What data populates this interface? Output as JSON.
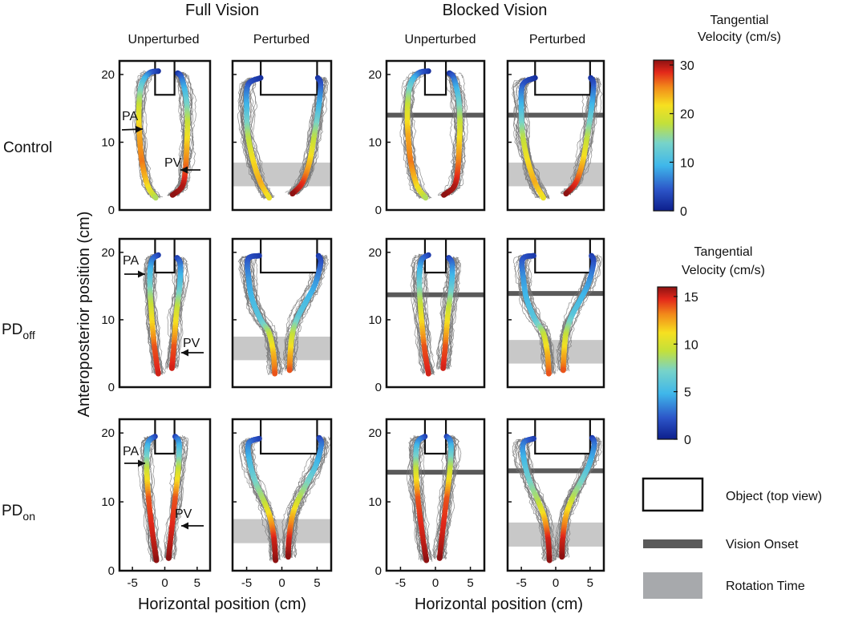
{
  "chart_data": {
    "type": "line",
    "description_units": "cm",
    "column_groups": [
      {
        "title": "Full Vision",
        "columns": [
          "Unperturbed",
          "Perturbed"
        ]
      },
      {
        "title": "Blocked Vision",
        "columns": [
          "Unperturbed",
          "Perturbed"
        ]
      }
    ],
    "rows": [
      {
        "label": "Control",
        "sub": ""
      },
      {
        "label": "PD",
        "sub": "off"
      },
      {
        "label": "PD",
        "sub": "on"
      }
    ],
    "xlabel": "Horizontal position (cm)",
    "ylabel": "Anteroposterior position (cm)",
    "xlim": [
      -7,
      7
    ],
    "ylim": [
      0,
      22
    ],
    "x_ticks": [
      -5,
      0,
      5
    ],
    "x_tick_labels": [
      "-5",
      "0",
      "5"
    ],
    "y_ticks": [
      0,
      10,
      20
    ],
    "y_tick_labels": [
      "0",
      "10",
      "20"
    ],
    "annotations": {
      "peak_acceleration": "PA",
      "peak_velocity": "PV"
    },
    "object_unperturbed": {
      "x": [
        -1.5,
        1.5
      ],
      "y": [
        17,
        22
      ]
    },
    "object_perturbed": {
      "x": [
        -3,
        5
      ],
      "y": [
        17,
        22
      ]
    },
    "vision_onset_y": [
      null,
      null,
      14,
      14,
      13.7,
      13.9,
      14.3,
      14.5
    ],
    "rotation_time_y": [
      [
        3.5,
        7
      ],
      [
        3.5,
        7
      ],
      [
        4,
        7.5
      ],
      [
        3.5,
        7
      ],
      [
        4,
        7.5
      ],
      [
        3.5,
        7
      ]
    ],
    "colorbars": [
      {
        "title_lines": [
          "Tangential",
          "Velocity (cm/s)"
        ],
        "min": 0,
        "max": 31,
        "ticks": [
          0,
          10,
          20,
          30
        ],
        "tick_labels": [
          "0",
          "10",
          "20",
          "30"
        ],
        "applies_to": "Control"
      },
      {
        "title_lines": [
          "Tangential",
          "Velocity (cm/s)"
        ],
        "min": 0,
        "max": 16,
        "ticks": [
          0,
          5,
          10,
          15
        ],
        "tick_labels": [
          "0",
          "5",
          "10",
          "15"
        ],
        "applies_to": "PD"
      }
    ],
    "mean_trajectories": {
      "control_unperturbed": {
        "left_digit": {
          "x": [
            -1,
            -2.4,
            -3.6,
            -4.0,
            -3.9,
            -3.5,
            -2.6,
            -1.4
          ],
          "y": [
            20.5,
            20.2,
            18.5,
            15,
            11,
            7,
            3.5,
            1.8
          ],
          "speed": [
            1,
            5,
            12,
            19,
            24,
            26,
            22,
            17
          ]
        },
        "right_digit": {
          "x": [
            2,
            2.6,
            3.3,
            3.5,
            3.4,
            3.2,
            2.7,
            1.2
          ],
          "y": [
            20.2,
            19.5,
            16.5,
            13,
            9.5,
            6,
            3.5,
            2.2
          ],
          "speed": [
            1,
            5,
            12,
            18,
            23,
            27,
            30,
            31
          ]
        }
      },
      "control_perturbed": {
        "left_digit": {
          "x": [
            -3,
            -4.8,
            -5,
            -4.8,
            -4.0,
            -3.0,
            -1.8
          ],
          "y": [
            19.5,
            18.5,
            15,
            11,
            7,
            4,
            1.8
          ],
          "speed": [
            1,
            4,
            10,
            17,
            22,
            24,
            21
          ]
        },
        "right_digit": {
          "x": [
            5.1,
            5.5,
            5.2,
            4.6,
            3.9,
            2.9,
            1.5
          ],
          "y": [
            19.5,
            18.5,
            15,
            11,
            7,
            4,
            2.4
          ],
          "speed": [
            1,
            4,
            10,
            17,
            23,
            28,
            31
          ]
        }
      },
      "pd_off_unperturbed": {
        "left_digit": {
          "x": [
            -1,
            -2.0,
            -2.3,
            -2.1,
            -1.6,
            -1.0
          ],
          "y": [
            19.6,
            18.8,
            16,
            11.5,
            6,
            2
          ],
          "speed": [
            1,
            3,
            6,
            10,
            14,
            15
          ]
        },
        "right_digit": {
          "x": [
            1.9,
            2.4,
            2.3,
            1.8,
            1.4,
            1.1
          ],
          "y": [
            19.2,
            18.2,
            15,
            11,
            6,
            2.8
          ],
          "speed": [
            1,
            3,
            6,
            10,
            14,
            15
          ]
        }
      },
      "pd_off_perturbed": {
        "left_digit": {
          "x": [
            -3.2,
            -4.8,
            -4.7,
            -4.2,
            -3.0,
            -1.8,
            -1.2,
            -1.0
          ],
          "y": [
            19.5,
            19,
            16,
            13,
            10,
            8,
            5,
            2
          ],
          "speed": [
            1,
            2,
            4,
            5,
            6,
            9,
            12,
            14
          ]
        },
        "right_digit": {
          "x": [
            5.2,
            5.5,
            4.8,
            3.6,
            2.3,
            1.5,
            1.2,
            1.1
          ],
          "y": [
            19.5,
            18.5,
            15.5,
            13,
            10.5,
            8,
            5,
            2.5
          ],
          "speed": [
            1,
            2,
            4,
            5,
            6,
            9,
            12,
            14
          ]
        }
      },
      "pd_on_unperturbed": {
        "left_digit": {
          "x": [
            -1.5,
            -2.6,
            -2.8,
            -2.5,
            -1.9,
            -1.3
          ],
          "y": [
            19.5,
            18.5,
            15,
            10.5,
            5.5,
            1.5
          ],
          "speed": [
            1,
            4,
            9,
            14,
            15,
            16
          ]
        },
        "right_digit": {
          "x": [
            1.6,
            2.2,
            2.1,
            1.6,
            1.0,
            0.6
          ],
          "y": [
            19.5,
            18.5,
            15,
            10.5,
            5.5,
            1.8
          ],
          "speed": [
            1,
            4,
            9,
            14,
            15,
            16
          ]
        }
      },
      "pd_on_perturbed": {
        "left_digit": {
          "x": [
            -3.2,
            -4.7,
            -4.6,
            -3.8,
            -2.5,
            -1.6,
            -1.1,
            -0.9
          ],
          "y": [
            19.2,
            18.5,
            16,
            13,
            10,
            7.5,
            4.5,
            1.5
          ],
          "speed": [
            1,
            3,
            5,
            7,
            9,
            12,
            15,
            16
          ]
        },
        "right_digit": {
          "x": [
            5.3,
            5.6,
            4.9,
            3.7,
            2.4,
            1.5,
            1.0,
            0.9
          ],
          "y": [
            19.3,
            18.3,
            15.5,
            13,
            10.5,
            8,
            4.5,
            2
          ],
          "speed": [
            1,
            3,
            5,
            7,
            9,
            12,
            15,
            16
          ]
        }
      }
    },
    "legend": [
      {
        "marker": "open-rectangle",
        "label": "Object (top view)"
      },
      {
        "marker": "dark-gray-line",
        "label": "Vision Onset"
      },
      {
        "marker": "light-gray-band",
        "label": "Rotation Time"
      }
    ],
    "colors": {
      "trace": "#777777",
      "vision_onset": "#5a5a5a",
      "rotation_band": "#c8c8c8",
      "frame": "#111111"
    }
  }
}
